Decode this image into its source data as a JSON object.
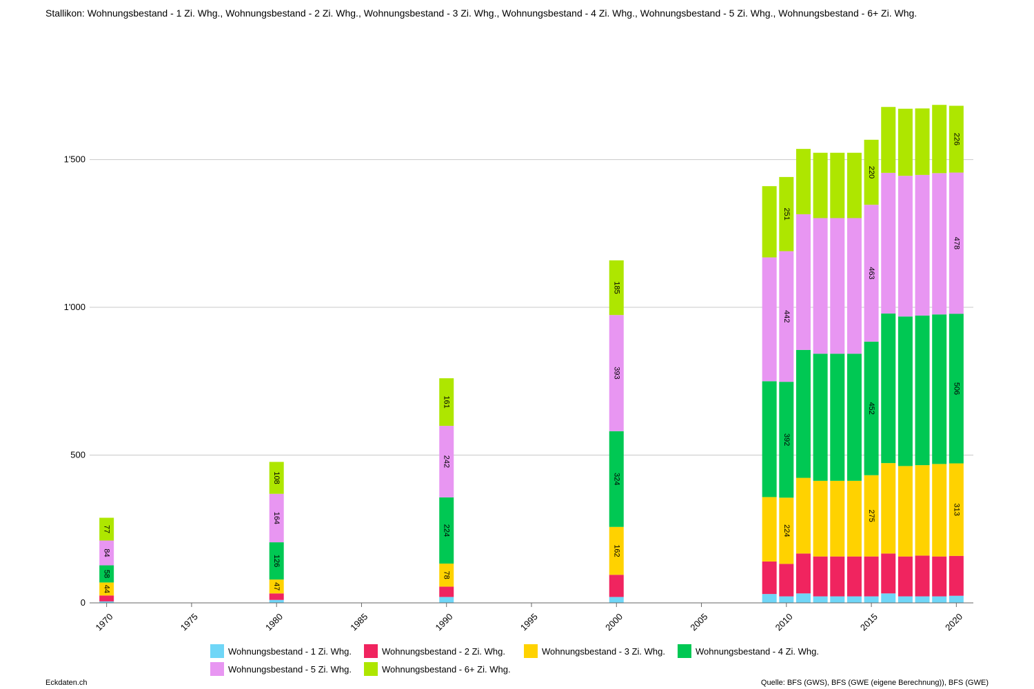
{
  "title": "Stallikon: Wohnungsbestand - 1 Zi. Whg., Wohnungsbestand - 2 Zi. Whg., Wohnungsbestand - 3 Zi. Whg., Wohnungsbestand - 4 Zi. Whg., Wohnungsbestand - 5 Zi. Whg., Wohnungsbestand - 6+ Zi. Whg.",
  "footer": {
    "left": "Eckdaten.ch",
    "right": "Quelle: BFS (GWS), BFS (GWE (eigene Berechnung)), BFS (GWE)"
  },
  "chart_data": {
    "type": "bar",
    "stacked": true,
    "x": [
      1970,
      1980,
      1990,
      2000,
      2009,
      2010,
      2011,
      2012,
      2013,
      2014,
      2015,
      2016,
      2017,
      2018,
      2019,
      2020
    ],
    "x_ticks": [
      "1970",
      "1975",
      "1980",
      "1985",
      "1990",
      "1995",
      "2000",
      "2005",
      "2010",
      "2015",
      "2020"
    ],
    "y_ticks": [
      {
        "value": 0,
        "label": "0"
      },
      {
        "value": 500,
        "label": "500"
      },
      {
        "value": 1000,
        "label": "1'000"
      },
      {
        "value": 1500,
        "label": "1'500"
      }
    ],
    "xlim": [
      1969,
      2021
    ],
    "ylim": [
      0,
      1900
    ],
    "grid": true,
    "legend_position": "bottom",
    "series": [
      {
        "name": "Wohnungsbestand - 1 Zi. Whg.",
        "color": "#6fd6f7",
        "values": [
          5,
          10,
          20,
          20,
          30,
          22,
          32,
          22,
          22,
          22,
          22,
          32,
          22,
          22,
          22,
          24
        ],
        "labels": [
          null,
          null,
          null,
          null,
          null,
          null,
          null,
          null,
          null,
          null,
          null,
          null,
          null,
          null,
          null,
          null
        ]
      },
      {
        "name": "Wohnungsbestand - 2 Zi. Whg.",
        "color": "#f0245f",
        "values": [
          20,
          22,
          35,
          75,
          110,
          110,
          135,
          135,
          135,
          135,
          135,
          135,
          135,
          138,
          135,
          135
        ],
        "labels": [
          null,
          null,
          null,
          null,
          null,
          null,
          null,
          null,
          null,
          null,
          null,
          null,
          null,
          null,
          null,
          null
        ]
      },
      {
        "name": "Wohnungsbestand - 3 Zi. Whg.",
        "color": "#ffd200",
        "values": [
          44,
          47,
          78,
          162,
          218,
          224,
          256,
          256,
          256,
          256,
          275,
          306,
          306,
          306,
          313,
          313
        ],
        "labels": [
          "44",
          "47",
          "78",
          "162",
          null,
          "224",
          null,
          null,
          null,
          null,
          "275",
          null,
          null,
          null,
          null,
          "313"
        ]
      },
      {
        "name": "Wohnungsbestand - 4 Zi. Whg.",
        "color": "#00c853",
        "values": [
          58,
          126,
          224,
          324,
          392,
          392,
          433,
          430,
          430,
          430,
          452,
          506,
          506,
          506,
          506,
          506
        ],
        "labels": [
          "58",
          "126",
          "224",
          "324",
          null,
          "392",
          null,
          null,
          null,
          null,
          "452",
          null,
          null,
          null,
          null,
          "506"
        ]
      },
      {
        "name": "Wohnungsbestand - 5 Zi. Whg.",
        "color": "#e896f2",
        "values": [
          84,
          164,
          242,
          393,
          419,
          442,
          459,
          459,
          459,
          459,
          463,
          476,
          476,
          476,
          478,
          478
        ],
        "labels": [
          "84",
          "164",
          "242",
          "393",
          null,
          "442",
          null,
          null,
          null,
          null,
          "463",
          null,
          null,
          null,
          null,
          "478"
        ]
      },
      {
        "name": "Wohnungsbestand - 6+ Zi. Whg.",
        "color": "#aee600",
        "values": [
          77,
          108,
          161,
          185,
          241,
          251,
          221,
          221,
          221,
          221,
          220,
          223,
          227,
          225,
          231,
          226
        ],
        "labels": [
          "77",
          "108",
          "161",
          "185",
          null,
          "251",
          null,
          null,
          null,
          null,
          "220",
          null,
          null,
          null,
          null,
          "226"
        ]
      }
    ]
  }
}
